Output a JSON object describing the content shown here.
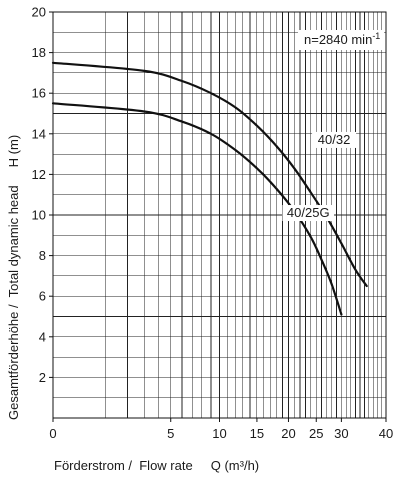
{
  "chart_data": {
    "type": "line",
    "x_scale": "sqrt",
    "ylim": [
      0,
      20
    ],
    "xlim": [
      0,
      40
    ],
    "x_ticks": [
      0,
      5,
      10,
      15,
      20,
      25,
      30,
      40
    ],
    "y_ticks": [
      2,
      4,
      6,
      8,
      10,
      12,
      14,
      16,
      18,
      20
    ],
    "xlabel": "Förderstrom /  Flow rate     Q (m³/h)",
    "ylabel": "Gesamtförderhöhe /  Total dynamic head     H (m)",
    "annotation": {
      "text": "n=2840 min",
      "sup": "-1"
    },
    "grid": true,
    "series": [
      {
        "name": "40/32",
        "x": [
          0,
          3,
          6,
          9,
          12,
          15,
          18,
          21,
          24,
          27,
          30,
          33,
          35.5
        ],
        "y": [
          17.5,
          17.1,
          16.6,
          16.0,
          15.3,
          14.4,
          13.4,
          12.3,
          11.1,
          9.9,
          8.6,
          7.3,
          6.5
        ]
      },
      {
        "name": "40/25G",
        "x": [
          0,
          3,
          6,
          9,
          12,
          15,
          18,
          21,
          24,
          26,
          28,
          30
        ],
        "y": [
          15.5,
          15.1,
          14.6,
          14.0,
          13.2,
          12.3,
          11.3,
          10.2,
          8.9,
          7.8,
          6.6,
          5.1
        ]
      }
    ]
  }
}
